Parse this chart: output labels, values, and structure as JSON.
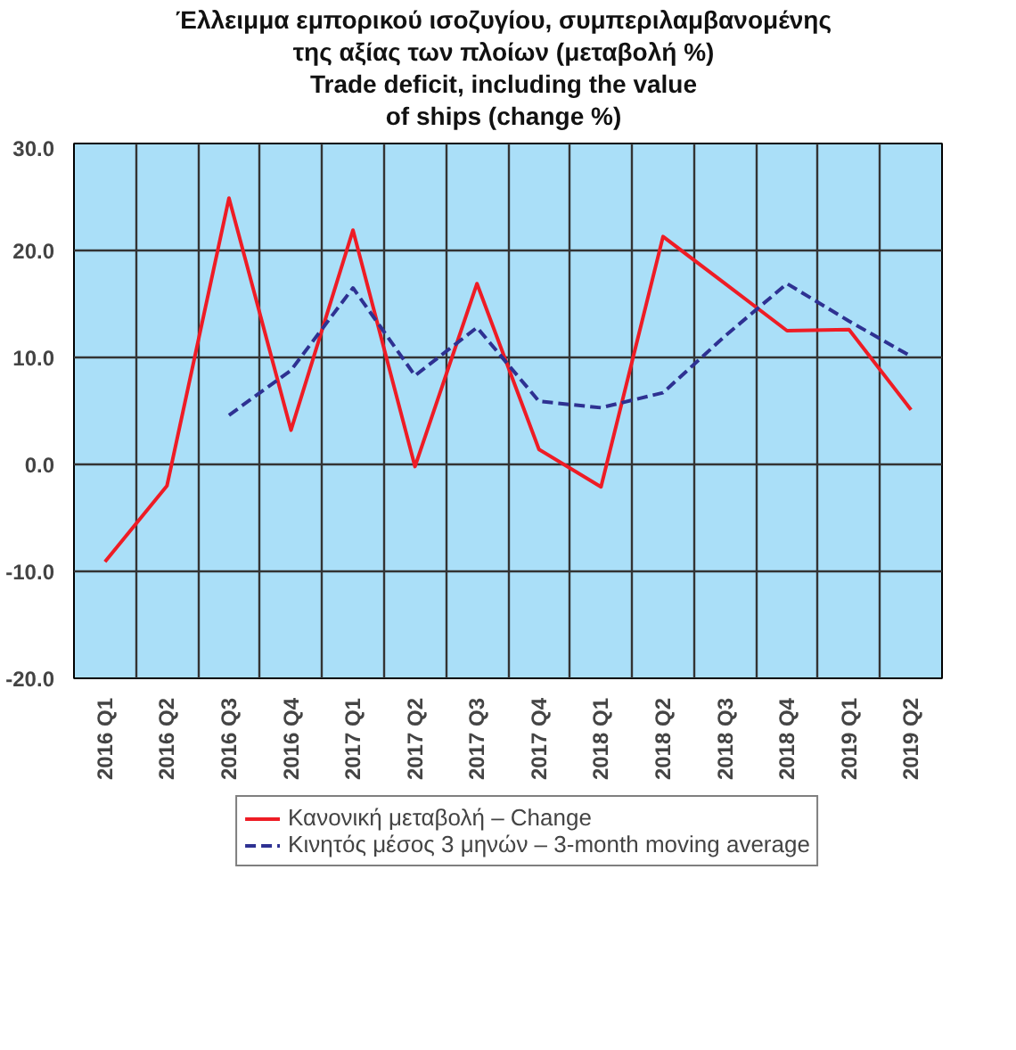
{
  "chart_data": {
    "type": "line",
    "title": "Έλλειμμα εμπορικού ισοζυγίου, συμπεριλαμβανομένης\nτης αξίας των πλοίων (μεταβολή %)\nTrade deficit, including the value\nof ships (change %)",
    "categories": [
      "2016 Q1",
      "2016 Q2",
      "2016 Q3",
      "2016 Q4",
      "2017 Q1",
      "2017 Q2",
      "2017 Q3",
      "2017 Q4",
      "2018 Q1",
      "2018 Q2",
      "2018 Q3",
      "2018 Q4",
      "2019 Q1",
      "2019 Q2"
    ],
    "series": [
      {
        "name": "Κανονική μεταβολή – Change",
        "color": "#ee1c25",
        "line_style": "solid",
        "values": [
          -9.1,
          -2.0,
          24.9,
          3.2,
          21.9,
          -0.2,
          16.9,
          1.4,
          -2.1,
          21.3,
          16.9,
          12.5,
          12.6,
          5.1
        ]
      },
      {
        "name": "Κινητός μέσος 3 μηνών – 3-month moving average",
        "color": "#2e3192",
        "line_style": "dashed",
        "values": [
          null,
          null,
          4.6,
          8.8,
          16.5,
          8.3,
          12.8,
          5.9,
          5.3,
          6.7,
          12.0,
          16.9,
          13.4,
          10.1
        ]
      }
    ],
    "ylim": [
      -20,
      30
    ],
    "yticks": [
      {
        "value": -20,
        "label": "-20.0"
      },
      {
        "value": -10,
        "label": "-10.0"
      },
      {
        "value": 0,
        "label": "0.0"
      },
      {
        "value": 10,
        "label": "10.0"
      },
      {
        "value": 20,
        "label": "20.0"
      },
      {
        "value": 30,
        "label": "30.0"
      }
    ],
    "grid": true,
    "legend": "bottom",
    "marker": "none"
  }
}
